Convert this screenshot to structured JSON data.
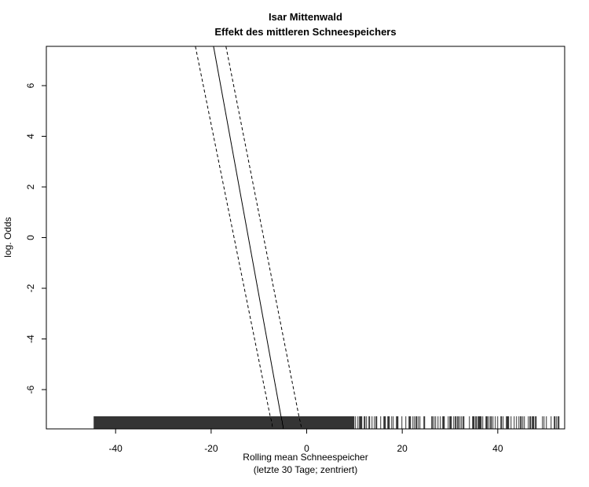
{
  "chart_data": {
    "type": "line",
    "title": "Isar Mittenwald",
    "subtitle": "Effekt des mittleren Schneespeichers",
    "xlabel": "Rolling mean Schneespeicher",
    "xlabel_sub": "(letzte 30 Tage; zentriert)",
    "ylabel": "log. Odds",
    "xlim": [
      -54.5,
      54.0
    ],
    "ylim": [
      -7.55,
      7.55
    ],
    "x_ticks": [
      -40,
      -20,
      0,
      20,
      40
    ],
    "x_tick_labels": [
      "-40",
      "-20",
      "0",
      "20",
      "40"
    ],
    "y_ticks": [
      -6,
      -4,
      -2,
      0,
      2,
      4,
      6
    ],
    "y_tick_labels": [
      "-6",
      "-4",
      "-2",
      "0",
      "2",
      "4",
      "6"
    ],
    "grid": false,
    "series": [
      {
        "key": "fit",
        "style": "solid",
        "x": [
          -19.5,
          -4.9
        ],
        "y": [
          7.55,
          -7.55
        ]
      },
      {
        "key": "upper",
        "style": "dashed",
        "x": [
          -16.9,
          -1.1
        ],
        "y": [
          7.55,
          -7.55
        ]
      },
      {
        "key": "lower",
        "style": "dashed",
        "x": [
          -23.3,
          -7.1
        ],
        "y": [
          7.55,
          -7.55
        ]
      }
    ],
    "rug": {
      "x_min": -44.5,
      "x_max": 54.0,
      "dense_min": -44.5,
      "dense_max": 10.0
    }
  }
}
